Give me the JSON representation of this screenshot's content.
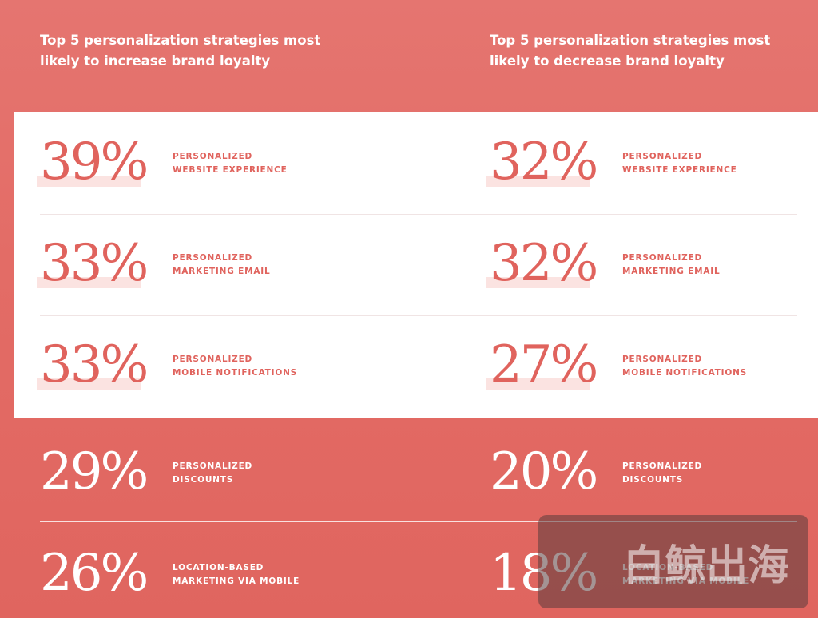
{
  "columns": [
    {
      "title_lines": [
        "Top 5 personalization strategies most",
        "likely to increase brand loyalty"
      ],
      "items": [
        {
          "percent": "39%",
          "label_lines": [
            "PERSONALIZED",
            "WEBSITE EXPERIENCE"
          ]
        },
        {
          "percent": "33%",
          "label_lines": [
            "PERSONALIZED",
            "MARKETING EMAIL"
          ]
        },
        {
          "percent": "33%",
          "label_lines": [
            "PERSONALIZED",
            "MOBILE NOTIFICATIONS"
          ]
        },
        {
          "percent": "29%",
          "label_lines": [
            "PERSONALIZED",
            "DISCOUNTS"
          ]
        },
        {
          "percent": "26%",
          "label_lines": [
            "LOCATION-BASED",
            "MARKETING VIA MOBILE"
          ]
        }
      ]
    },
    {
      "title_lines": [
        "Top 5 personalization strategies most",
        "likely to decrease brand loyalty"
      ],
      "items": [
        {
          "percent": "32%",
          "label_lines": [
            "PERSONALIZED",
            "WEBSITE EXPERIENCE"
          ]
        },
        {
          "percent": "32%",
          "label_lines": [
            "PERSONALIZED",
            "MARKETING EMAIL"
          ]
        },
        {
          "percent": "27%",
          "label_lines": [
            "PERSONALIZED",
            "MOBILE NOTIFICATIONS"
          ]
        },
        {
          "percent": "20%",
          "label_lines": [
            "PERSONALIZED",
            "DISCOUNTS"
          ]
        },
        {
          "percent": "18%",
          "label_lines": [
            "LOCATION-BASED",
            "MARKETING VIA MOBILE"
          ]
        }
      ]
    }
  ],
  "watermark": "白鲸出海"
}
